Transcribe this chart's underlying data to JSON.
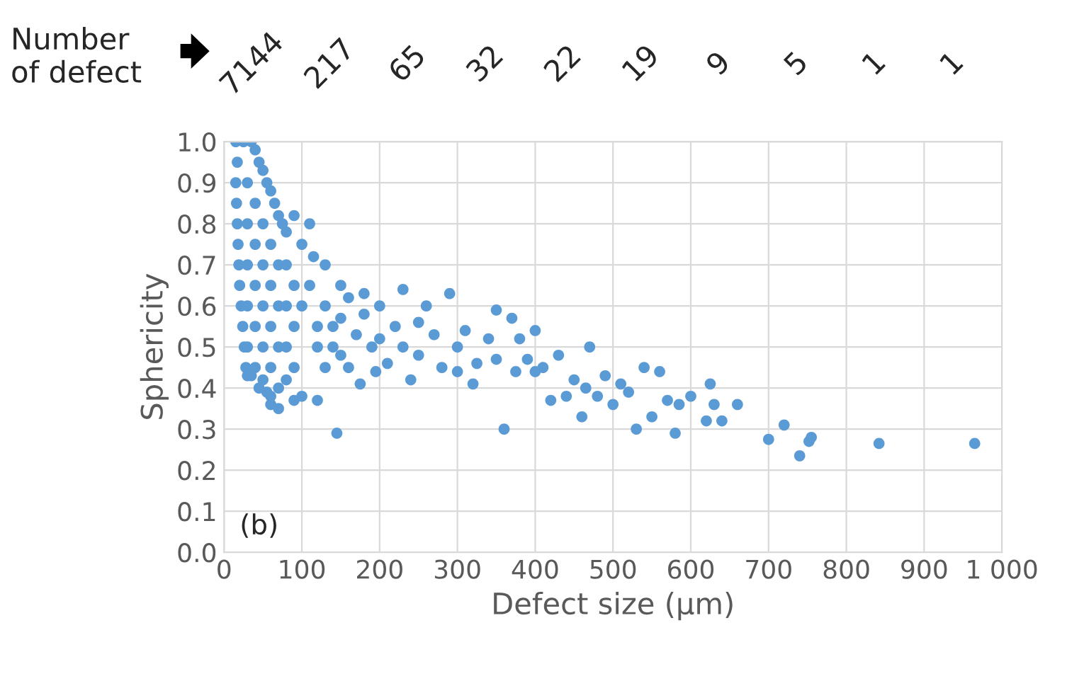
{
  "chart_data": {
    "type": "scatter",
    "xlabel": "Defect size (µm)",
    "ylabel": "Sphericity",
    "annotations": [
      "Number\nof defect",
      "7144",
      "217",
      "65",
      "32",
      "22",
      "19",
      "9",
      "5",
      "1",
      "1",
      "(b)"
    ],
    "xlim": [
      0,
      1000
    ],
    "ylim": [
      0,
      1.0
    ],
    "xticks": [
      0,
      100,
      200,
      300,
      400,
      500,
      600,
      700,
      800,
      900,
      {
        "value": 1000,
        "label": "1 000"
      }
    ],
    "yticks": [
      {
        "value": 0,
        "label": "0.0"
      },
      {
        "value": 0.1,
        "label": "0.1"
      },
      {
        "value": 0.2,
        "label": "0.2"
      },
      {
        "value": 0.3,
        "label": "0.3"
      },
      {
        "value": 0.4,
        "label": "0.4"
      },
      {
        "value": 0.5,
        "label": "0.5"
      },
      {
        "value": 0.6,
        "label": "0.6"
      },
      {
        "value": 0.7,
        "label": "0.7"
      },
      {
        "value": 0.8,
        "label": "0.8"
      },
      {
        "value": 0.9,
        "label": "0.9"
      },
      {
        "value": 1.0,
        "label": "1.0"
      }
    ],
    "grid": true,
    "marker": "circle",
    "series": [
      {
        "color": "#5b9bd5",
        "x": [
          15,
          17,
          15,
          16,
          17,
          18,
          19,
          20,
          22,
          24,
          26,
          28,
          30,
          25,
          35,
          40,
          45,
          50,
          55,
          60,
          65,
          70,
          75,
          80,
          90,
          110,
          100,
          115,
          130,
          150,
          180,
          30,
          30,
          30,
          30,
          30,
          40,
          40,
          40,
          40,
          40,
          50,
          50,
          50,
          50,
          50,
          60,
          60,
          60,
          60,
          60,
          70,
          70,
          70,
          70,
          80,
          80,
          80,
          80,
          90,
          90,
          90,
          90,
          35,
          45,
          55,
          60,
          70,
          100,
          120,
          145,
          100,
          110,
          120,
          120,
          130,
          130,
          140,
          140,
          150,
          150,
          160,
          160,
          170,
          175,
          180,
          190,
          195,
          200,
          200,
          210,
          220,
          230,
          230,
          240,
          250,
          250,
          260,
          270,
          280,
          290,
          300,
          300,
          310,
          320,
          325,
          340,
          350,
          350,
          360,
          370,
          375,
          380,
          390,
          400,
          400,
          410,
          420,
          430,
          440,
          450,
          460,
          465,
          470,
          480,
          490,
          500,
          510,
          520,
          530,
          540,
          550,
          560,
          570,
          580,
          585,
          600,
          620,
          625,
          630,
          640,
          660,
          700,
          720,
          740,
          752,
          755,
          842,
          965
        ],
        "values": [
          1.0,
          0.95,
          0.9,
          0.85,
          0.8,
          0.75,
          0.7,
          0.65,
          0.6,
          0.55,
          0.5,
          0.45,
          0.43,
          1.0,
          1.0,
          0.98,
          0.95,
          0.93,
          0.9,
          0.88,
          0.85,
          0.82,
          0.8,
          0.78,
          0.82,
          0.8,
          0.75,
          0.72,
          0.7,
          0.65,
          0.63,
          0.9,
          0.8,
          0.7,
          0.6,
          0.5,
          0.85,
          0.75,
          0.65,
          0.55,
          0.45,
          0.8,
          0.7,
          0.6,
          0.5,
          0.42,
          0.75,
          0.65,
          0.55,
          0.45,
          0.38,
          0.7,
          0.6,
          0.5,
          0.4,
          0.7,
          0.6,
          0.5,
          0.42,
          0.65,
          0.55,
          0.45,
          0.37,
          0.43,
          0.4,
          0.39,
          0.36,
          0.35,
          0.38,
          0.37,
          0.29,
          0.6,
          0.65,
          0.55,
          0.5,
          0.6,
          0.45,
          0.55,
          0.5,
          0.57,
          0.48,
          0.62,
          0.45,
          0.53,
          0.41,
          0.58,
          0.5,
          0.44,
          0.6,
          0.52,
          0.46,
          0.55,
          0.64,
          0.5,
          0.42,
          0.56,
          0.48,
          0.6,
          0.53,
          0.45,
          0.63,
          0.5,
          0.44,
          0.54,
          0.41,
          0.46,
          0.52,
          0.59,
          0.47,
          0.3,
          0.57,
          0.44,
          0.52,
          0.47,
          0.54,
          0.44,
          0.45,
          0.37,
          0.48,
          0.38,
          0.42,
          0.33,
          0.4,
          0.5,
          0.38,
          0.43,
          0.36,
          0.41,
          0.39,
          0.3,
          0.45,
          0.33,
          0.44,
          0.37,
          0.29,
          0.36,
          0.38,
          0.32,
          0.41,
          0.36,
          0.32,
          0.36,
          0.275,
          0.31,
          0.235,
          0.27,
          0.28,
          0.265,
          0.265
        ]
      }
    ]
  }
}
